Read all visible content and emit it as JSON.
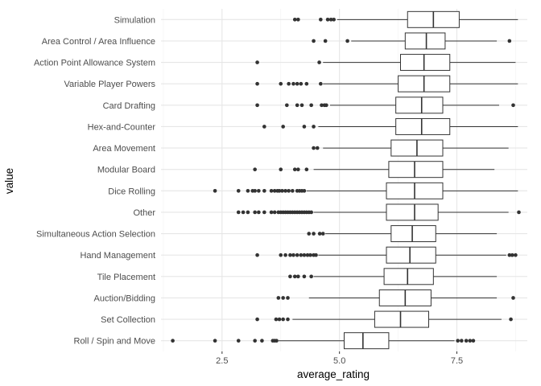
{
  "chart_data": {
    "type": "boxplot",
    "orientation": "horizontal",
    "xlabel": "average_rating",
    "ylabel": "value",
    "xlim": [
      1.2,
      9.0
    ],
    "x_ticks": [
      2.5,
      5.0,
      7.5
    ],
    "x_tick_labels": [
      "2.5",
      "5.0",
      "7.5"
    ],
    "grid": true,
    "legend": "none",
    "colors": {
      "box_stroke": "#333333",
      "grid_major": "#e6e6e6",
      "grid_minor": "#f2f2f2",
      "outlier": "#333333"
    },
    "categories": [
      {
        "name": "Simulation",
        "min": 4.95,
        "q1": 6.45,
        "median": 7.0,
        "q3": 7.55,
        "max": 8.8,
        "outliers": [
          4.05,
          4.12,
          4.6,
          4.75,
          4.82,
          4.88
        ]
      },
      {
        "name": "Area Control / Area Influence",
        "min": 5.25,
        "q1": 6.4,
        "median": 6.85,
        "q3": 7.25,
        "max": 8.35,
        "outliers": [
          4.45,
          4.7,
          5.17,
          8.62
        ]
      },
      {
        "name": "Action Point Allowance System",
        "min": 4.65,
        "q1": 6.3,
        "median": 6.8,
        "q3": 7.35,
        "max": 8.75,
        "outliers": [
          3.25,
          4.57
        ]
      },
      {
        "name": "Variable Player Powers",
        "min": 4.65,
        "q1": 6.25,
        "median": 6.8,
        "q3": 7.35,
        "max": 8.8,
        "outliers": [
          3.25,
          3.75,
          3.92,
          4.02,
          4.1,
          4.18,
          4.3,
          4.6
        ]
      },
      {
        "name": "Card Drafting",
        "min": 4.8,
        "q1": 6.2,
        "median": 6.75,
        "q3": 7.2,
        "max": 8.4,
        "outliers": [
          3.25,
          3.88,
          4.1,
          4.2,
          4.4,
          4.62,
          4.68,
          4.72,
          8.7
        ]
      },
      {
        "name": "Hex-and-Counter",
        "min": 4.55,
        "q1": 6.2,
        "median": 6.75,
        "q3": 7.35,
        "max": 8.8,
        "outliers": [
          3.4,
          3.8,
          4.25,
          4.45
        ]
      },
      {
        "name": "Area Movement",
        "min": 4.65,
        "q1": 6.1,
        "median": 6.65,
        "q3": 7.2,
        "max": 8.6,
        "outliers": [
          4.45,
          4.53
        ]
      },
      {
        "name": "Modular Board",
        "min": 4.45,
        "q1": 6.05,
        "median": 6.6,
        "q3": 7.2,
        "max": 8.3,
        "outliers": [
          3.2,
          3.75,
          4.05,
          4.12,
          4.3
        ]
      },
      {
        "name": "Dice Rolling",
        "min": 4.3,
        "q1": 6.0,
        "median": 6.6,
        "q3": 7.2,
        "max": 8.8,
        "outliers": [
          2.35,
          2.85,
          3.05,
          3.15,
          3.2,
          3.28,
          3.4,
          3.55,
          3.62,
          3.68,
          3.72,
          3.78,
          3.85,
          3.92,
          4.0,
          4.1,
          4.15,
          4.2,
          4.25
        ]
      },
      {
        "name": "Other",
        "min": 4.45,
        "q1": 6.0,
        "median": 6.6,
        "q3": 7.1,
        "max": 8.6,
        "outliers": [
          2.85,
          2.95,
          3.05,
          3.2,
          3.28,
          3.4,
          3.55,
          3.62,
          3.7,
          3.75,
          3.8,
          3.85,
          3.9,
          3.95,
          4.0,
          4.05,
          4.1,
          4.15,
          4.2,
          4.25,
          4.3,
          4.35,
          4.4,
          8.82
        ]
      },
      {
        "name": "Simultaneous Action Selection",
        "min": 4.7,
        "q1": 6.1,
        "median": 6.55,
        "q3": 7.05,
        "max": 8.35,
        "outliers": [
          4.35,
          4.45,
          4.58,
          4.65
        ]
      },
      {
        "name": "Hand Management",
        "min": 4.55,
        "q1": 6.0,
        "median": 6.5,
        "q3": 7.05,
        "max": 8.55,
        "outliers": [
          3.25,
          3.75,
          3.85,
          3.95,
          4.02,
          4.1,
          4.18,
          4.25,
          4.32,
          4.38,
          4.45,
          4.5,
          8.62,
          8.68,
          8.75
        ]
      },
      {
        "name": "Tile Placement",
        "min": 4.45,
        "q1": 5.95,
        "median": 6.45,
        "q3": 7.0,
        "max": 8.35,
        "outliers": [
          3.95,
          4.05,
          4.12,
          4.25,
          4.4
        ]
      },
      {
        "name": "Auction/Bidding",
        "min": 4.35,
        "q1": 5.85,
        "median": 6.4,
        "q3": 6.95,
        "max": 8.35,
        "outliers": [
          3.7,
          3.8,
          3.9,
          8.7
        ]
      },
      {
        "name": "Set Collection",
        "min": 4.0,
        "q1": 5.75,
        "median": 6.3,
        "q3": 6.9,
        "max": 8.45,
        "outliers": [
          3.25,
          3.65,
          3.72,
          3.8,
          3.9,
          8.65
        ]
      },
      {
        "name": "Roll / Spin and Move",
        "min": 3.7,
        "q1": 5.1,
        "median": 5.5,
        "q3": 6.05,
        "max": 7.45,
        "outliers": [
          1.45,
          2.35,
          2.85,
          3.2,
          3.35,
          3.58,
          3.62,
          3.66,
          7.52,
          7.6,
          7.7,
          7.78,
          7.85
        ]
      }
    ]
  }
}
